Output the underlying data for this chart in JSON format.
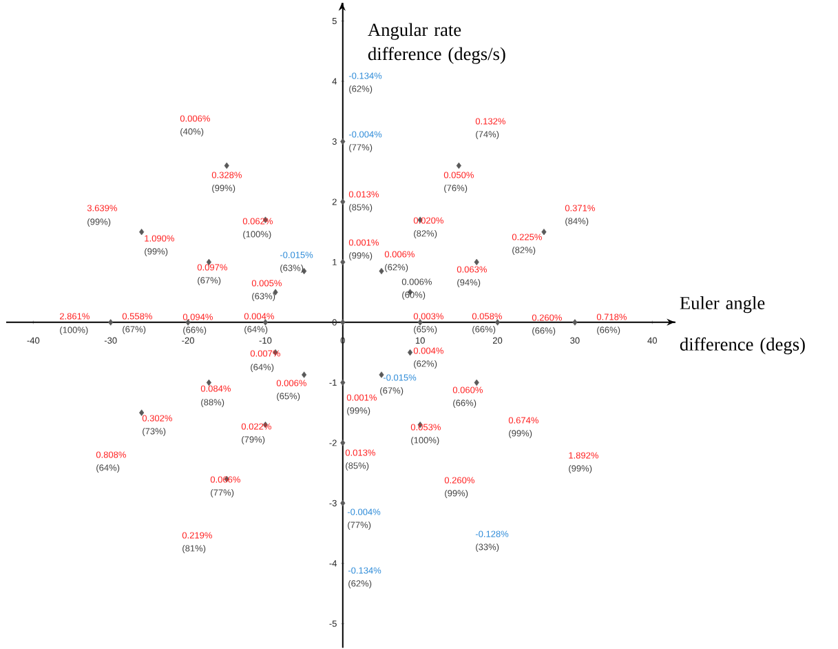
{
  "chart_data": {
    "type": "scatter",
    "xlabel": "Euler angle difference (degs)",
    "ylabel": "Angular rate difference (degs/s)",
    "x": [
      0,
      0,
      0,
      0,
      0,
      0,
      0,
      -15,
      15,
      -10,
      10,
      -26,
      26,
      -17.3,
      17.3,
      -5,
      5,
      -8.7,
      8.7,
      -30,
      -20,
      -10,
      10,
      20,
      30,
      -8.7,
      8.7,
      -5,
      5,
      -17.3,
      17.3,
      -26,
      -10,
      10,
      -15
    ],
    "values": [
      3,
      2,
      1,
      0,
      -1,
      -2,
      -3,
      2.6,
      2.6,
      1.7,
      1.7,
      1.5,
      1.5,
      1,
      1,
      0.85,
      0.85,
      0.5,
      0.5,
      0,
      0,
      0,
      0,
      0,
      0,
      -0.5,
      -0.5,
      -0.87,
      -0.87,
      -1,
      -1,
      -1.5,
      -1.7,
      -1.7,
      -2.6
    ],
    "color": "#595959",
    "marker": "diamond",
    "xlim": [
      -43.5,
      43
    ],
    "ylim": [
      -5.4,
      5.3
    ],
    "xticks": [
      -40,
      -30,
      -20,
      -10,
      0,
      10,
      20,
      30,
      40
    ],
    "yticks": [
      -5,
      -4,
      -3,
      -2,
      -1,
      0,
      1,
      2,
      3,
      4,
      5
    ],
    "annotations": [
      "0.006%",
      "(40%)",
      "0.328%",
      "(99%)",
      "3.639%",
      "(99%)",
      "1.090%",
      "(99%)",
      "0.062%",
      "(100%)",
      "-0.015%",
      "(63%)",
      "0.097%",
      "(67%)",
      "0.005%",
      "(63%)",
      "2.861%",
      "(100%)",
      "0.558%",
      "(67%)",
      "0.094%",
      "(66%)",
      "0.004%",
      "(64%)",
      "-0.134%",
      "(62%)",
      "-0.004%",
      "(77%)",
      "0.132%",
      "(74%)",
      "0.050%",
      "(76%)",
      "0.013%",
      "(85%)",
      "0.371%",
      "(84%)",
      "0.020%",
      "(82%)",
      "0.225%",
      "(82%)",
      "0.001%",
      "(99%)",
      "0.006%",
      "(62%)",
      "0.006%",
      "(60%)",
      "0.063%",
      "(94%)",
      "0.003%",
      "(65%)",
      "0.058%",
      "(66%)",
      "0.260%",
      "(66%)",
      "0.718%",
      "(66%)",
      "0.007%",
      "(64%)",
      "0.006%",
      "(65%)",
      "0.084%",
      "(88%)",
      "0.302%",
      "(73%)",
      "0.022%",
      "(79%)",
      "0.808%",
      "(64%)",
      "0.066%",
      "(77%)",
      "0.219%",
      "(81%)",
      "0.004%",
      "(62%)",
      "-0.015%",
      "(67%)",
      "0.001%",
      "(99%)",
      "0.060%",
      "(66%)",
      "0.674%",
      "(99%)",
      "0.053%",
      "(100%)",
      "0.013%",
      "(85%)",
      "1.892%",
      "(99%)",
      "0.260%",
      "(99%)",
      "-0.004%",
      "(77%)",
      "-0.128%",
      "(33%)",
      "-0.134%",
      "(62%)"
    ]
  }
}
